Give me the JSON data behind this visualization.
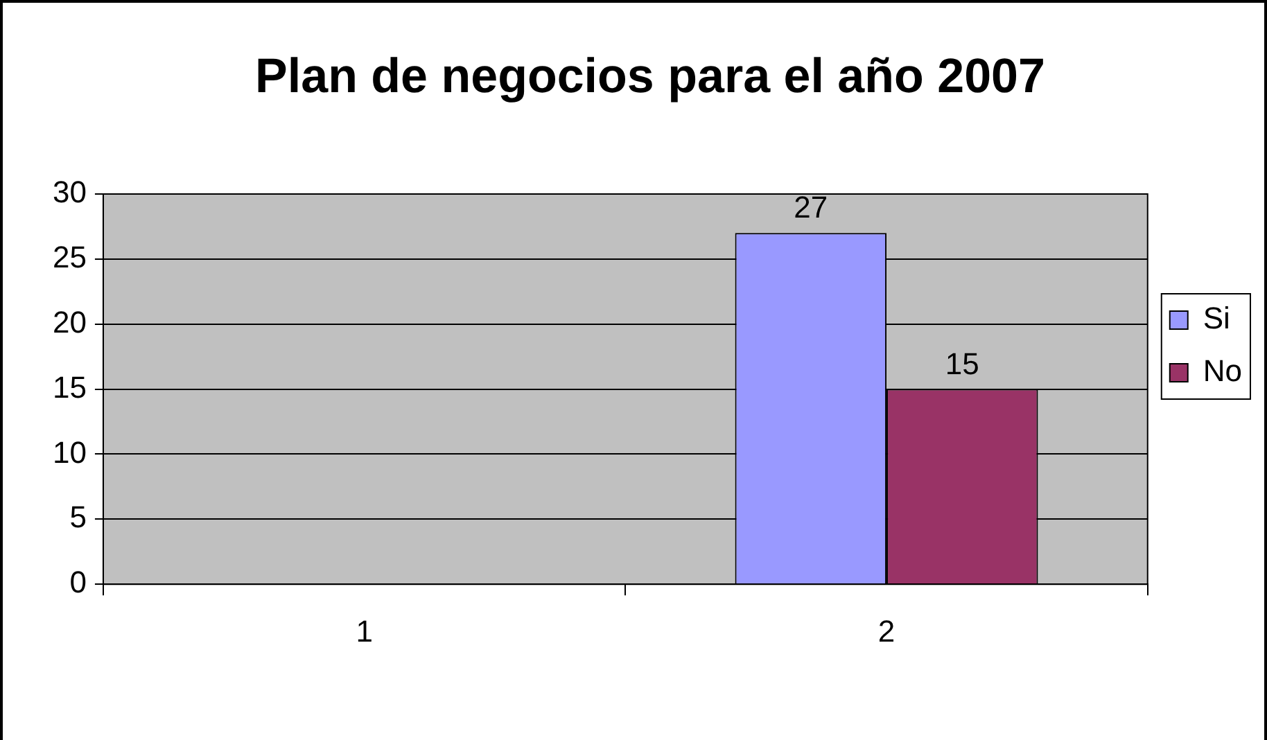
{
  "chart_data": {
    "type": "bar",
    "title": "Plan de negocios para el año 2007",
    "categories": [
      "1",
      "2"
    ],
    "series": [
      {
        "name": "Si",
        "color": "#9999ff",
        "values": [
          null,
          27
        ]
      },
      {
        "name": "No",
        "color": "#993366",
        "values": [
          null,
          15
        ]
      }
    ],
    "ylim": [
      0,
      30
    ],
    "yticks": [
      0,
      5,
      10,
      15,
      20,
      25,
      30
    ],
    "grid": "y",
    "legend": "right",
    "data_labels": true
  }
}
